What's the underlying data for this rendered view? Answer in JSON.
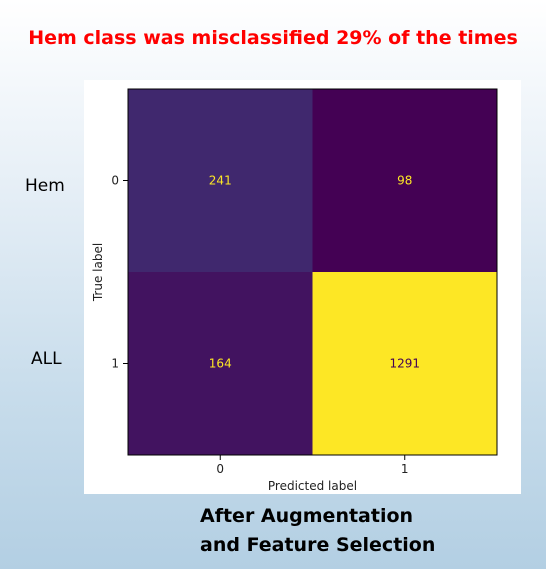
{
  "headline": "Hem class was misclassified 29% of the times",
  "side_labels": {
    "top": "Hem",
    "bottom": "ALL"
  },
  "caption": {
    "line1": "After Augmentation",
    "line2": "and Feature Selection"
  },
  "colors": {
    "headline": "#ff0000",
    "low": "#440154",
    "mid": "#47307a",
    "high": "#fde725",
    "text_dark": "#440154",
    "text_light": "#fde725"
  },
  "chart_data": {
    "type": "heatmap",
    "title": "",
    "xlabel": "Predicted label",
    "ylabel": "True label",
    "x_ticks": [
      "0",
      "1"
    ],
    "y_ticks": [
      "0",
      "1"
    ],
    "colormap": "viridis",
    "matrix": [
      [
        241,
        98
      ],
      [
        164,
        1291
      ]
    ]
  }
}
